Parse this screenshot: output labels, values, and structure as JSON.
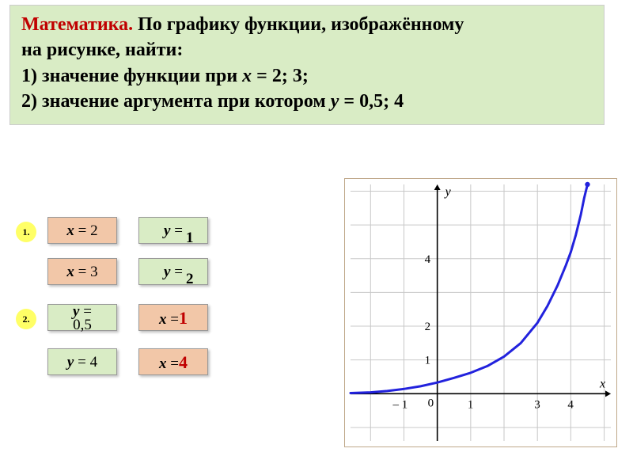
{
  "header": {
    "title": "Математика.",
    "line1_a": " По графику функции, изображённому",
    "line2": "на рисунке, найти:",
    "line3_a": "1)  значение функции при ",
    "line3_var": "х",
    "line3_b": " = 2; 3;",
    "line4_a": "2)  значение  аргумента при котором ",
    "line4_var": "у",
    "line4_b": " = 0,5; 4"
  },
  "badges": {
    "b1": "1.",
    "b2": "2."
  },
  "cells": {
    "x2": {
      "var": "x",
      "eq": " = ",
      "val": "2"
    },
    "x3": {
      "var": "x",
      "eq": " = ",
      "val": "3"
    },
    "y05": {
      "var": "y",
      "eq": " = ",
      "val": "0,5"
    },
    "y4": {
      "var": "y",
      "eq": " = ",
      "val": "4"
    },
    "y_a": {
      "var": "y",
      "eq": " =",
      "ans": "1"
    },
    "y_b": {
      "var": "y",
      "eq": " =",
      "ans": "2"
    },
    "x_a": {
      "var": "x",
      "eq": " =",
      "ans": "1"
    },
    "x_b": {
      "var": "x",
      "eq": " =",
      "ans": "4"
    }
  },
  "chart": {
    "type": "line",
    "background_color": "#ffffff",
    "axis_color": "#000000",
    "grid_color": "#c8c8c8",
    "frame_color": "#bfa88a",
    "curve_color": "#2222dd",
    "curve_width": 3,
    "xlim": [
      -2.6,
      5.2
    ],
    "ylim": [
      -1.4,
      6.2
    ],
    "grid_step": 1,
    "x_ticks_labeled": [
      -1,
      1,
      3,
      4
    ],
    "y_ticks_labeled": [
      1,
      2,
      4
    ],
    "axis_labels": {
      "x": "x",
      "y": "y",
      "origin": "0"
    },
    "label_fontsize": 15,
    "curve_points": [
      [
        -2.6,
        0.02
      ],
      [
        -2.0,
        0.04
      ],
      [
        -1.5,
        0.08
      ],
      [
        -1.0,
        0.14
      ],
      [
        -0.5,
        0.22
      ],
      [
        0.0,
        0.33
      ],
      [
        0.5,
        0.47
      ],
      [
        1.0,
        0.62
      ],
      [
        1.5,
        0.82
      ],
      [
        2.0,
        1.1
      ],
      [
        2.5,
        1.5
      ],
      [
        3.0,
        2.1
      ],
      [
        3.3,
        2.6
      ],
      [
        3.6,
        3.2
      ],
      [
        3.85,
        3.8
      ],
      [
        4.0,
        4.2
      ],
      [
        4.15,
        4.7
      ],
      [
        4.3,
        5.3
      ],
      [
        4.4,
        5.8
      ],
      [
        4.5,
        6.2
      ]
    ]
  }
}
